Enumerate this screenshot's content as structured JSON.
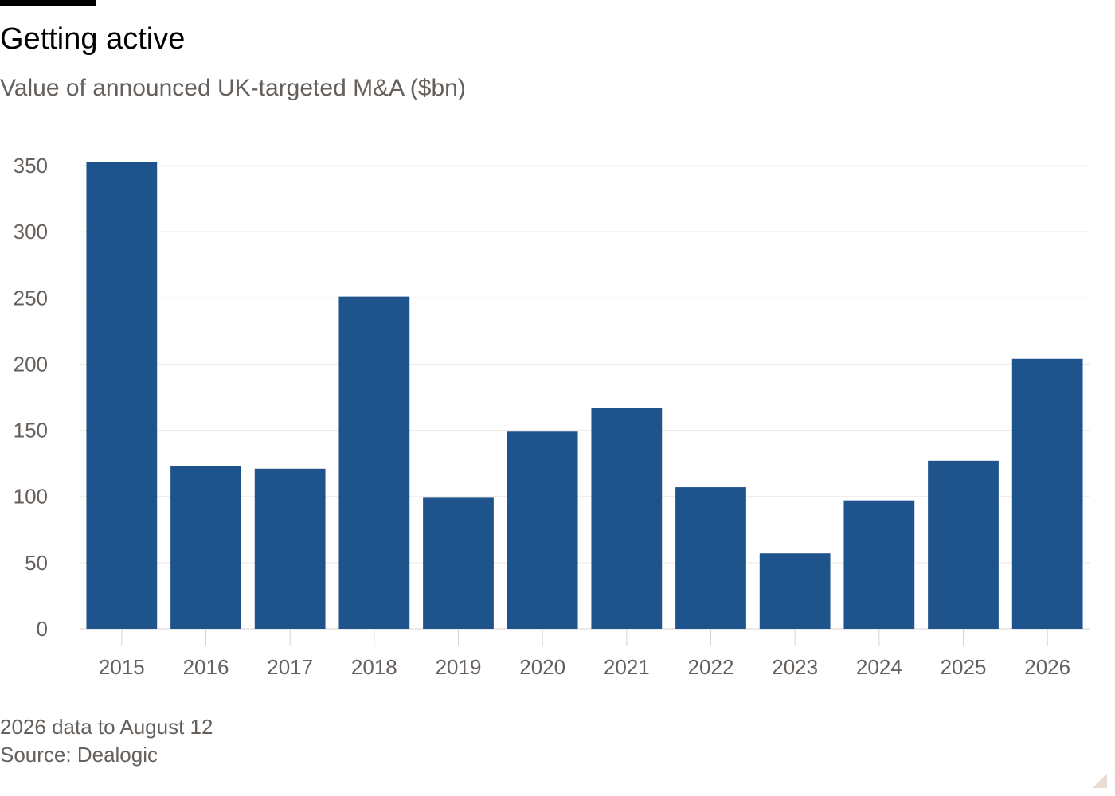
{
  "title": "Getting active",
  "subtitle": "Value of announced UK-targeted M&A ($bn)",
  "note": "2026 data to August 12",
  "source": "Source: Dealogic",
  "colors": {
    "bar": "#1f538b",
    "grid": "#ece8e4",
    "tick_text": "#66605c",
    "axis": "#d9d3cd"
  },
  "chart_data": {
    "type": "bar",
    "title": "Getting active",
    "subtitle": "Value of announced UK-targeted M&A ($bn)",
    "xlabel": "",
    "ylabel": "",
    "categories": [
      "2015",
      "2016",
      "2017",
      "2018",
      "2019",
      "2020",
      "2021",
      "2022",
      "2023",
      "2024",
      "2025",
      "2026"
    ],
    "values": [
      353,
      123,
      121,
      251,
      99,
      149,
      167,
      107,
      57,
      97,
      127,
      204
    ],
    "yticks": [
      0,
      50,
      100,
      150,
      200,
      250,
      300,
      350
    ],
    "ylim": [
      0,
      350
    ],
    "grid": true,
    "legend": "none"
  }
}
